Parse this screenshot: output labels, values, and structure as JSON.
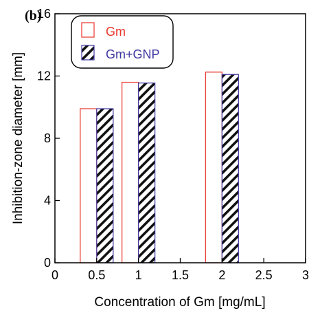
{
  "panel_label": "(b)",
  "chart_data": {
    "type": "bar",
    "xlabel": "Concentration of Gm [mg/mL]",
    "ylabel": "Inhibition-zone diameter [mm]",
    "xlim": [
      0,
      3
    ],
    "ylim": [
      0,
      16
    ],
    "x_ticks": [
      0,
      0.5,
      1,
      1.5,
      2,
      2.5,
      3
    ],
    "x_tick_labels": [
      "0",
      "0.5",
      "1",
      "1.5",
      "2",
      "2.5",
      "3"
    ],
    "y_ticks": [
      0,
      4,
      8,
      12,
      16
    ],
    "y_tick_labels": [
      "0",
      "4",
      "8",
      "12",
      "16"
    ],
    "categories": [
      0.5,
      1,
      2
    ],
    "series": [
      {
        "name": "Gm",
        "values": [
          9.9,
          11.6,
          12.25
        ],
        "style": "hollow",
        "color": "#e8332a"
      },
      {
        "name": "Gm+GNP",
        "values": [
          9.9,
          11.55,
          12.1
        ],
        "style": "hatched",
        "color": "#3c36a0"
      }
    ],
    "legend_position": "top-left",
    "grid": false
  }
}
